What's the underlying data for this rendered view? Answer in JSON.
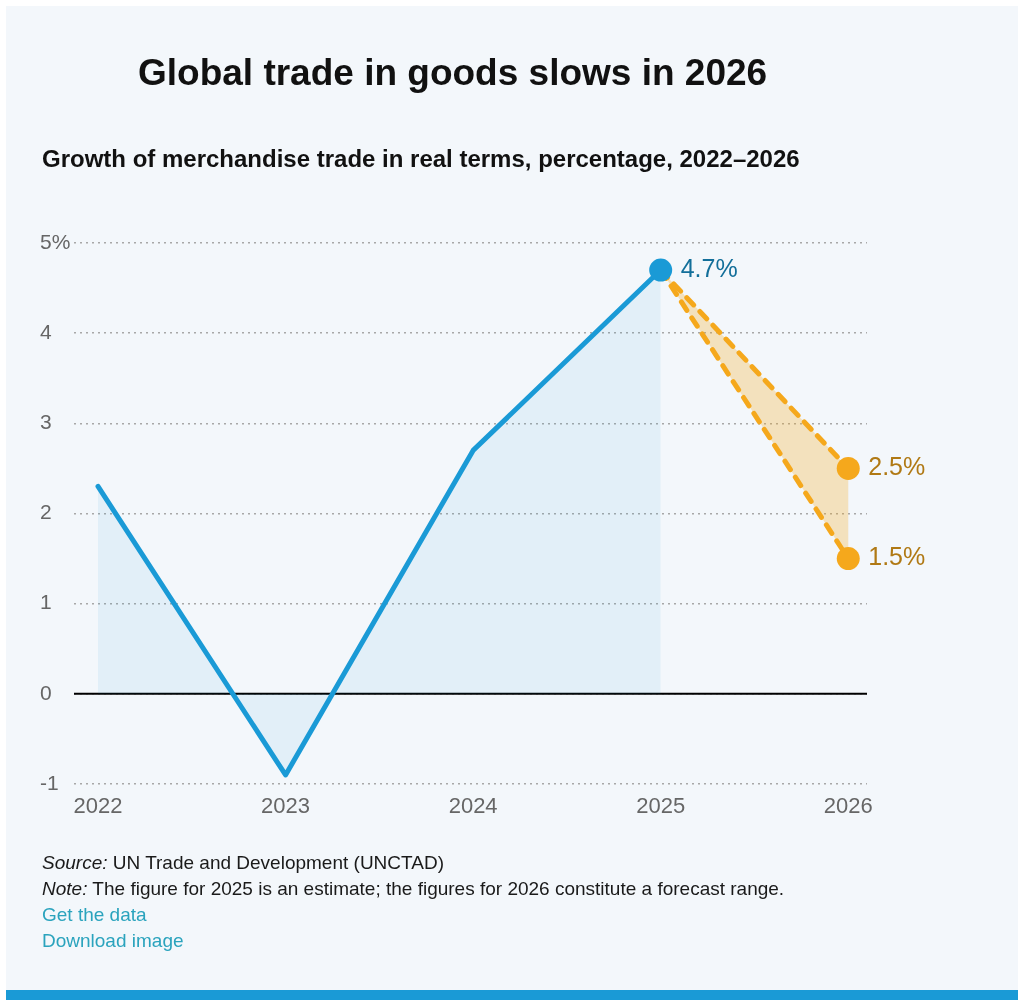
{
  "chart_data": {
    "type": "line",
    "title": "Global trade in goods slows in 2026",
    "subtitle": "Growth of merchandise trade in real terms, percentage, 2022–2026",
    "categories": [
      "2022",
      "2023",
      "2024",
      "2025",
      "2026"
    ],
    "series": [
      {
        "type": "area",
        "color": "#1a9ad6",
        "values": [
          2.3,
          -0.9,
          2.7,
          4.7,
          null
        ],
        "line_style": "solid"
      },
      {
        "color": "#f5a81c",
        "values": [
          null,
          null,
          null,
          4.7,
          2.5
        ],
        "line_style": "dashed"
      },
      {
        "color": "#f5a81c",
        "values": [
          null,
          null,
          null,
          4.7,
          1.5
        ],
        "line_style": "dashed",
        "lower": [
          null,
          null,
          null,
          4.7,
          1.5
        ],
        "upper": [
          null,
          null,
          null,
          4.7,
          2.5
        ]
      },
      {
        "type": "scatter",
        "color": "#1a9ad6",
        "values": [
          null,
          null,
          null,
          4.7,
          null
        ],
        "value_labels": [
          null,
          null,
          null,
          "4.7%",
          null
        ],
        "marker": "circle"
      },
      {
        "type": "scatter",
        "color": "#f5a81c",
        "values": [
          null,
          null,
          null,
          null,
          2.5
        ],
        "value_labels": [
          null,
          null,
          null,
          null,
          "2.5%"
        ],
        "marker": "circle"
      },
      {
        "type": "scatter",
        "color": "#f5a81c",
        "values": [
          null,
          null,
          null,
          null,
          1.5
        ],
        "value_labels": [
          null,
          null,
          null,
          null,
          "1.5%"
        ],
        "marker": "circle"
      }
    ],
    "ylim": [
      -1,
      5
    ],
    "yticks": [
      -1,
      0,
      1,
      2,
      3,
      4,
      {
        "value": 5,
        "label": "5%"
      }
    ],
    "grid": "y",
    "ref_lines": [
      {
        "axis": "y",
        "value": 0,
        "color": "#000000"
      }
    ],
    "annotations": [
      "Source: UN Trade and Development (UNCTAD)",
      "Note: The figure for 2025 is an estimate; the figures for 2026 constitute a forecast range.",
      "Get the data",
      "Download image"
    ]
  }
}
